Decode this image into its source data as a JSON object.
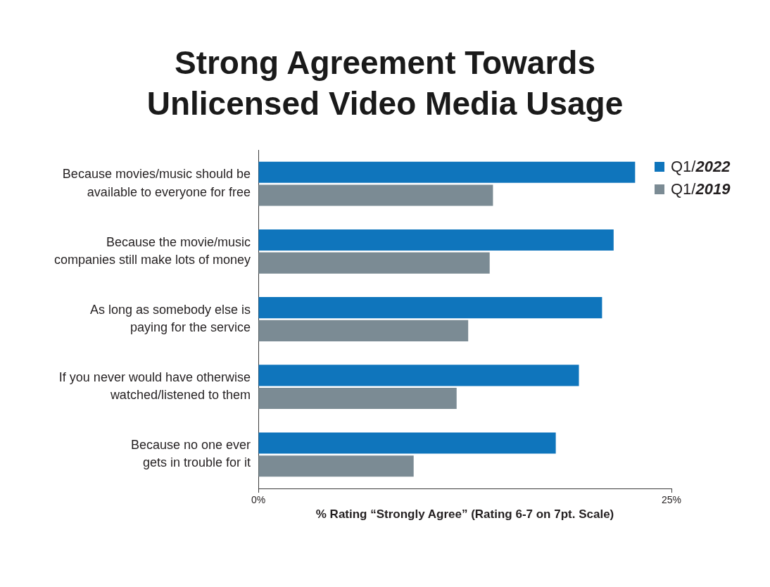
{
  "chart_data": {
    "type": "bar",
    "orientation": "horizontal",
    "title": "Strong Agreement Towards Unlicensed Video Media Usage",
    "xlabel": "% Rating “Strongly Agree” (Rating 6-7 on 7pt. Scale)",
    "categories": [
      "Because movies/music should be\navailable to everyone for free",
      "Because the movie/music\ncompanies still make lots of money",
      "As long as somebody else is\npaying for the service",
      "If you never would have otherwise\nwatched/listened to them",
      "Because no one ever\ngets in trouble for it"
    ],
    "series": [
      {
        "name": "Q1/2022",
        "color": "#0f75bc",
        "values": [
          22.8,
          21.5,
          20.8,
          19.4,
          18.0
        ]
      },
      {
        "name": "Q1/2019",
        "color": "#7b8b94",
        "values": [
          14.2,
          14.0,
          12.7,
          12.0,
          9.4
        ]
      }
    ],
    "xlim": [
      0,
      25
    ],
    "xticks": [
      {
        "value": 0,
        "label": "0%"
      },
      {
        "value": 25,
        "label": "25%"
      }
    ],
    "legend": "top right"
  }
}
